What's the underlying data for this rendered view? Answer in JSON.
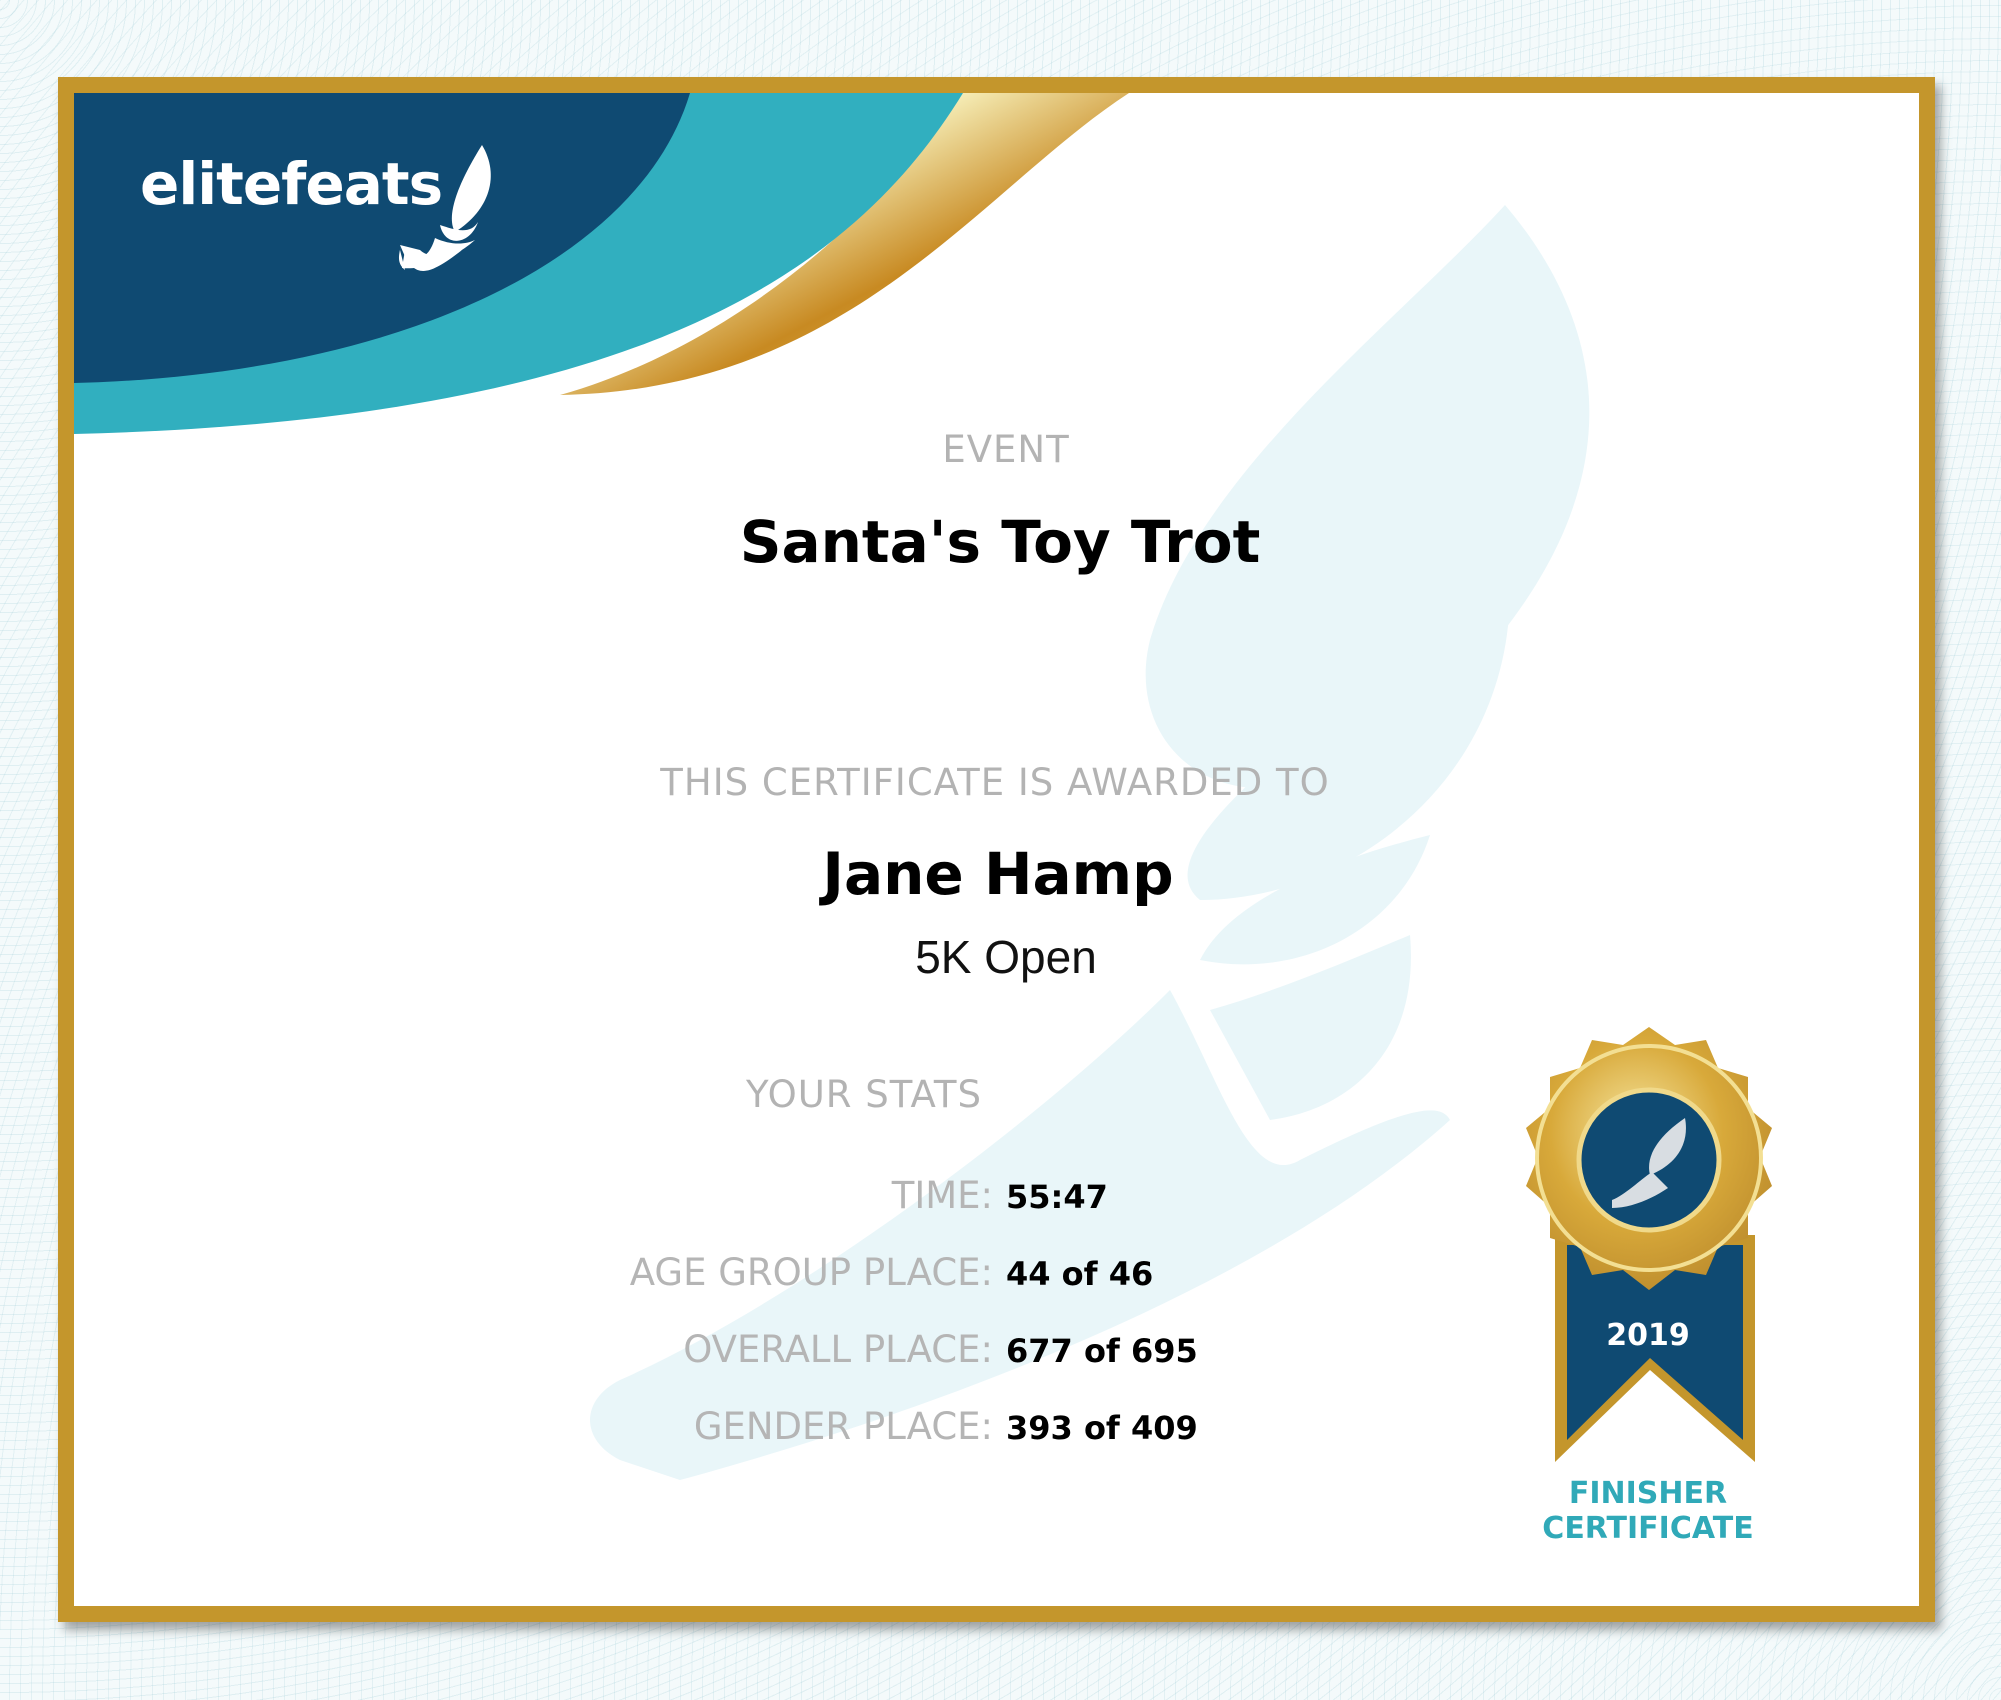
{
  "brand": {
    "logo_text": "elitefeats"
  },
  "certificate": {
    "event_label": "EVENT",
    "event_name": "Santa's Toy Trot",
    "awarded_label": "THIS CERTIFICATE IS AWARDED TO",
    "recipient": "Jane Hamp",
    "division": "5K Open",
    "stats_label": "YOUR STATS",
    "stats": [
      {
        "label": "TIME:",
        "value": "55:47"
      },
      {
        "label": "AGE GROUP PLACE:",
        "value": "44 of 46"
      },
      {
        "label": "OVERALL PLACE:",
        "value": "677 of 695"
      },
      {
        "label": "GENDER PLACE:",
        "value": "393 of 409"
      }
    ]
  },
  "badge": {
    "year": "2019",
    "line1": "FINISHER",
    "line2": "CERTIFICATE"
  },
  "colors": {
    "navy": "#0f4a72",
    "teal": "#31afbf",
    "gold": "#c4962c",
    "label_gray": "#b3b3b3"
  }
}
